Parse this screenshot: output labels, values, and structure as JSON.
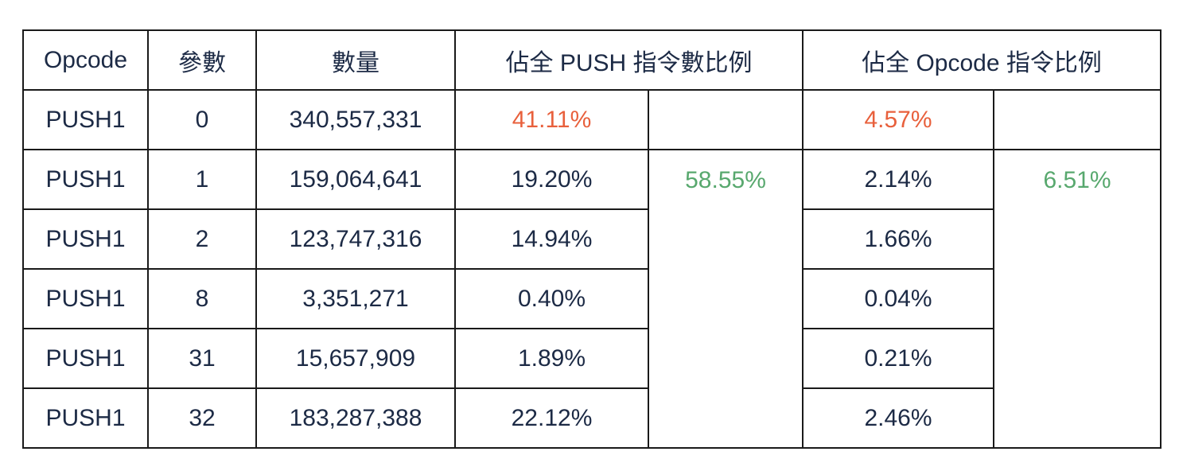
{
  "colors": {
    "text": "#1c2a45",
    "highlight_red": "#e8603c",
    "highlight_green": "#58a86e",
    "border": "#1a1a1a"
  },
  "headers": {
    "opcode": "Opcode",
    "param": "參數",
    "count": "數量",
    "push_ratio": "佔全 PUSH 指令數比例",
    "opcode_ratio": "佔全 Opcode 指令比例"
  },
  "rows": [
    {
      "opcode": "PUSH1",
      "param": "0",
      "count": "340,557,331",
      "push_pct": "41.11%",
      "opcode_pct": "4.57%"
    },
    {
      "opcode": "PUSH1",
      "param": "1",
      "count": "159,064,641",
      "push_pct": "19.20%",
      "opcode_pct": "2.14%"
    },
    {
      "opcode": "PUSH1",
      "param": "2",
      "count": "123,747,316",
      "push_pct": "14.94%",
      "opcode_pct": "1.66%"
    },
    {
      "opcode": "PUSH1",
      "param": "8",
      "count": "3,351,271",
      "push_pct": "0.40%",
      "opcode_pct": "0.04%"
    },
    {
      "opcode": "PUSH1",
      "param": "31",
      "count": "15,657,909",
      "push_pct": "1.89%",
      "opcode_pct": "0.21%"
    },
    {
      "opcode": "PUSH1",
      "param": "32",
      "count": "183,287,388",
      "push_pct": "22.12%",
      "opcode_pct": "2.46%"
    }
  ],
  "push_sum": "58.55%",
  "opcode_sum": "6.51%"
}
